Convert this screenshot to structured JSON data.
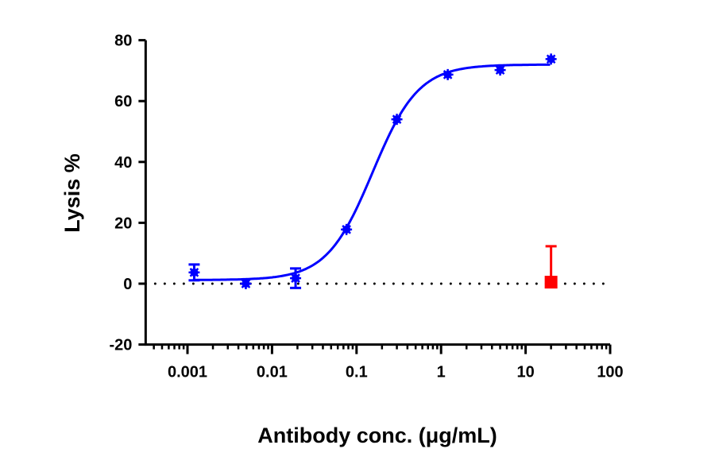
{
  "chart_data": {
    "type": "scatter",
    "xlabel": "Antibody conc. (μg/mL)",
    "ylabel": "Lysis %",
    "xscale": "log",
    "xlim": [
      0.00032,
      100
    ],
    "ylim": [
      -20,
      80
    ],
    "x_ticks": [
      "0.001",
      "0.01",
      "0.1",
      "1",
      "10",
      "100"
    ],
    "x_tick_values": [
      0.001,
      0.01,
      0.1,
      1,
      10,
      100
    ],
    "y_ticks": [
      "-20",
      "0",
      "20",
      "40",
      "60",
      "80"
    ],
    "y_tick_values": [
      -20,
      0,
      20,
      40,
      60,
      80
    ],
    "grid": false,
    "reference_line": {
      "y": 0,
      "style": "dotted",
      "color": "#000000"
    },
    "series": [
      {
        "color": "#0000ff",
        "marker": "star",
        "fit": {
          "model": "4PL",
          "bottom": 1.2,
          "top": 72,
          "ec50": 0.155,
          "hill": 1.6
        },
        "points": [
          {
            "x": 0.0012,
            "y": 3.7,
            "err": 2.6
          },
          {
            "x": 0.0049,
            "y": 0.0,
            "err": 0.5
          },
          {
            "x": 0.019,
            "y": 1.8,
            "err": 3.2
          },
          {
            "x": 0.076,
            "y": 17.8,
            "err": 0.8
          },
          {
            "x": 0.3,
            "y": 54.0,
            "err": 0.8
          },
          {
            "x": 1.2,
            "y": 68.7,
            "err": 0.8
          },
          {
            "x": 5.0,
            "y": 70.2,
            "err": 0.8
          },
          {
            "x": 20,
            "y": 73.8,
            "err": 0.8
          }
        ]
      },
      {
        "color": "#ff0000",
        "marker": "square",
        "points": [
          {
            "x": 20,
            "y": 0.5,
            "err_up": 11.8
          }
        ]
      }
    ]
  }
}
